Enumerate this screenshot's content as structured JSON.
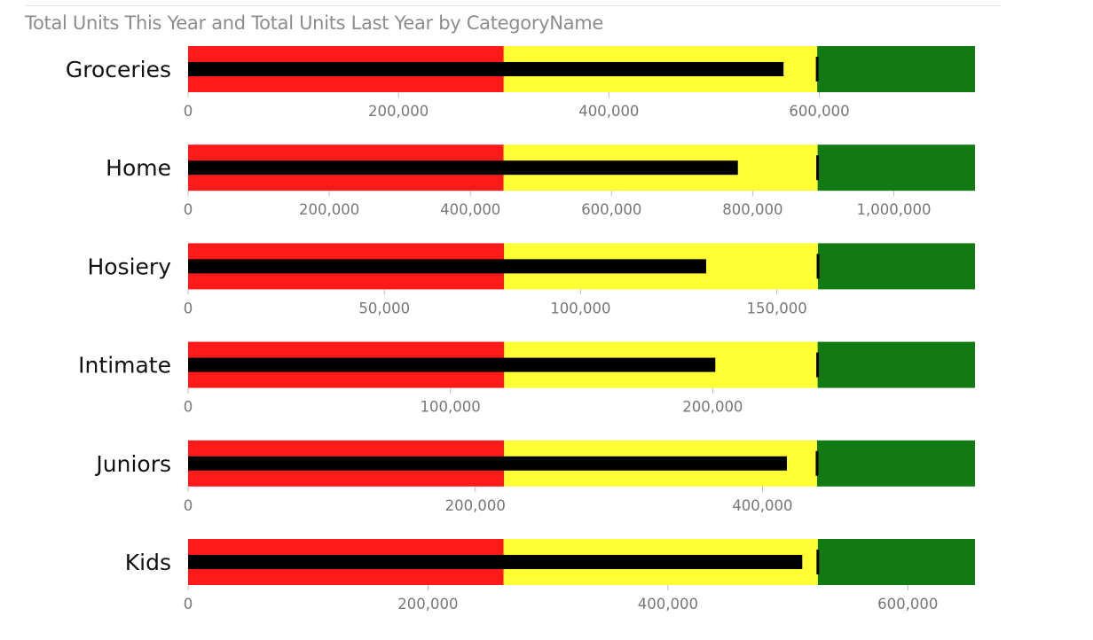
{
  "chart_data": {
    "type": "bullet",
    "title": "Total Units This Year and Total Units Last Year by CategoryName",
    "band_colors": {
      "poor": "#ff1a1a",
      "satisfactory": "#ffff33",
      "good": "#127a12"
    },
    "measure_color": "#000000",
    "target_color": "#000000",
    "axis_label_color": "#777777",
    "categories": [
      {
        "name": "Groceries",
        "value": 566000,
        "target": 598000,
        "bands": [
          300000,
          598000,
          748000
        ],
        "ticks": [
          0,
          200000,
          400000,
          600000
        ],
        "tick_labels": [
          "0",
          "200,000",
          "400,000",
          "600,000"
        ]
      },
      {
        "name": "Home",
        "value": 779000,
        "target": 892000,
        "bands": [
          447000,
          892000,
          1115000
        ],
        "ticks": [
          0,
          200000,
          400000,
          600000,
          800000,
          1000000
        ],
        "tick_labels": [
          "0",
          "200,000",
          "400,000",
          "600,000",
          "800,000",
          "1,000,000"
        ]
      },
      {
        "name": "Hosiery",
        "value": 132000,
        "target": 160500,
        "bands": [
          80500,
          160500,
          200500
        ],
        "ticks": [
          0,
          50000,
          100000,
          150000
        ],
        "tick_labels": [
          "0",
          "50,000",
          "100,000",
          "150,000"
        ]
      },
      {
        "name": "Intimate",
        "value": 201000,
        "target": 240000,
        "bands": [
          120500,
          240000,
          300000
        ],
        "ticks": [
          0,
          100000,
          200000
        ],
        "tick_labels": [
          "0",
          "100,000",
          "200,000"
        ]
      },
      {
        "name": "Juniors",
        "value": 417000,
        "target": 438000,
        "bands": [
          220000,
          438000,
          548000
        ],
        "ticks": [
          0,
          200000,
          400000
        ],
        "tick_labels": [
          "0",
          "200,000",
          "400,000"
        ]
      },
      {
        "name": "Kids",
        "value": 512000,
        "target": 525000,
        "bands": [
          263000,
          525000,
          656000
        ],
        "ticks": [
          0,
          200000,
          400000,
          600000
        ],
        "tick_labels": [
          "0",
          "200,000",
          "400,000",
          "600,000"
        ]
      }
    ]
  }
}
